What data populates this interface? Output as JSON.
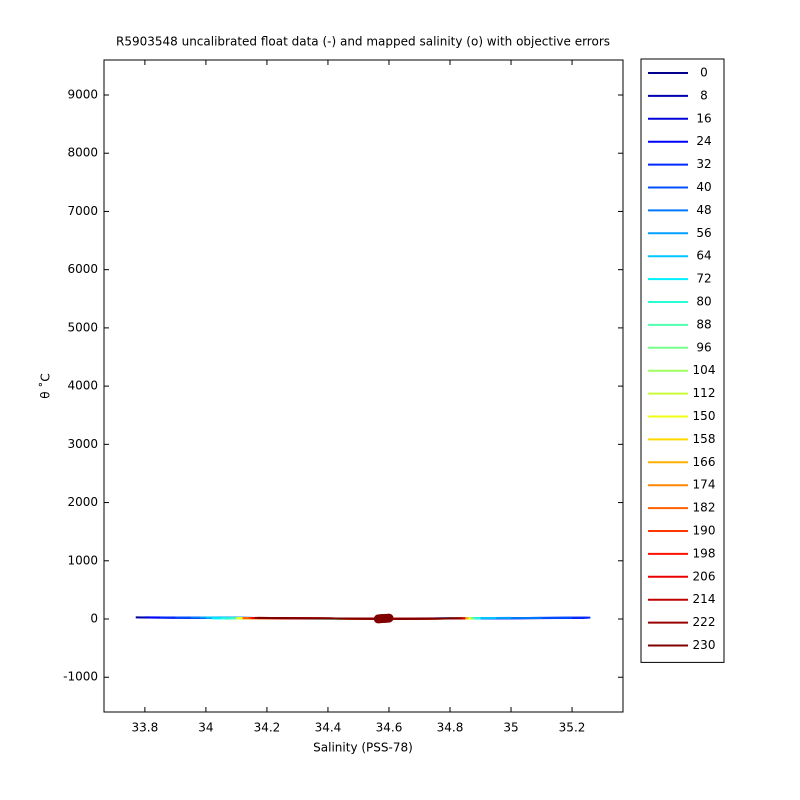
{
  "chart_data": {
    "type": "line",
    "title": "R5903548 uncalibrated float data (-) and mapped salinity (o) with objective errors",
    "x_label": "Salinity (PSS-78)",
    "y_label": "θ ˚C",
    "xlim": [
      33.666,
      35.367
    ],
    "ylim": [
      -1597,
      9601
    ],
    "xticks": [
      33.8,
      34,
      34.2,
      34.4,
      34.6,
      34.8,
      35,
      35.2
    ],
    "yticks": [
      -1000,
      0,
      1000,
      2000,
      3000,
      4000,
      5000,
      6000,
      7000,
      8000,
      9000
    ],
    "series": [
      {
        "name": "0",
        "color": "#00008f",
        "x": [
          33.77,
          33.9,
          34.5,
          35.2
        ],
        "values": [
          28,
          22,
          6,
          18
        ]
      },
      {
        "name": "8",
        "color": "#0000b0",
        "x": [
          33.78,
          34.0,
          34.55,
          35.22
        ],
        "values": [
          27,
          21,
          5,
          19
        ]
      },
      {
        "name": "16",
        "color": "#0000d8",
        "x": [
          33.8,
          34.1,
          34.56,
          35.24
        ],
        "values": [
          28,
          20,
          5,
          20
        ]
      },
      {
        "name": "24",
        "color": "#0000ff",
        "x": [
          33.82,
          34.1,
          34.57,
          35.25
        ],
        "values": [
          27,
          19,
          4,
          22
        ]
      },
      {
        "name": "32",
        "color": "#0028ff",
        "x": [
          33.85,
          34.15,
          34.58,
          35.26
        ],
        "values": [
          26,
          18,
          4,
          23
        ]
      },
      {
        "name": "40",
        "color": "#0050ff",
        "x": [
          33.9,
          34.2,
          34.58,
          35.2
        ],
        "values": [
          26,
          17,
          3,
          21
        ]
      },
      {
        "name": "48",
        "color": "#0078ff",
        "x": [
          33.95,
          34.2,
          34.59,
          35.1
        ],
        "values": [
          25,
          16,
          3,
          20
        ]
      },
      {
        "name": "56",
        "color": "#00a0ff",
        "x": [
          33.98,
          34.25,
          34.59,
          35.0
        ],
        "values": [
          25,
          15,
          3,
          19
        ]
      },
      {
        "name": "64",
        "color": "#00c8ff",
        "x": [
          34.0,
          34.25,
          34.6,
          34.95
        ],
        "values": [
          24,
          14,
          3,
          18
        ]
      },
      {
        "name": "72",
        "color": "#00f0ff",
        "x": [
          34.02,
          34.3,
          34.6,
          34.9
        ],
        "values": [
          12,
          10,
          3,
          14
        ]
      },
      {
        "name": "80",
        "color": "#28ffd8",
        "x": [
          34.05,
          34.3,
          34.6,
          34.9
        ],
        "values": [
          11,
          9,
          3,
          13
        ]
      },
      {
        "name": "88",
        "color": "#50ffb0",
        "x": [
          34.08,
          34.3,
          34.6,
          34.88
        ],
        "values": [
          11,
          9,
          3,
          13
        ]
      },
      {
        "name": "96",
        "color": "#78ff88",
        "x": [
          34.1,
          34.35,
          34.6,
          34.88
        ],
        "values": [
          12,
          9,
          3,
          12
        ]
      },
      {
        "name": "104",
        "color": "#a0ff60",
        "x": [
          34.1,
          34.35,
          34.6,
          34.87
        ],
        "values": [
          13,
          9,
          3,
          12
        ]
      },
      {
        "name": "112",
        "color": "#c8ff38",
        "x": [
          34.1,
          34.35,
          34.6,
          34.87
        ],
        "values": [
          14,
          10,
          3,
          12
        ]
      },
      {
        "name": "150",
        "color": "#f0ff10",
        "x": [
          34.1,
          34.35,
          34.6,
          34.87
        ],
        "values": [
          14,
          10,
          3,
          12
        ]
      },
      {
        "name": "158",
        "color": "#ffd800",
        "x": [
          34.12,
          34.35,
          34.6,
          34.86
        ],
        "values": [
          15,
          10,
          3,
          12
        ]
      },
      {
        "name": "166",
        "color": "#ffb000",
        "x": [
          34.12,
          34.35,
          34.6,
          34.86
        ],
        "values": [
          15,
          10,
          3,
          12
        ]
      },
      {
        "name": "174",
        "color": "#ff8800",
        "x": [
          34.12,
          34.35,
          34.6,
          34.85
        ],
        "values": [
          16,
          10,
          3,
          12
        ]
      },
      {
        "name": "182",
        "color": "#ff6000",
        "x": [
          34.12,
          34.35,
          34.6,
          34.85
        ],
        "values": [
          16,
          10,
          3,
          12
        ]
      },
      {
        "name": "190",
        "color": "#ff3800",
        "x": [
          34.14,
          34.35,
          34.6,
          34.85
        ],
        "values": [
          17,
          10,
          3,
          12
        ]
      },
      {
        "name": "198",
        "color": "#ff1000",
        "x": [
          34.15,
          34.35,
          34.6,
          34.85
        ],
        "values": [
          18,
          10,
          3,
          12
        ]
      },
      {
        "name": "206",
        "color": "#e80000",
        "x": [
          34.15,
          34.35,
          34.6,
          34.85
        ],
        "values": [
          18,
          10,
          3,
          12
        ]
      },
      {
        "name": "214",
        "color": "#c00000",
        "x": [
          34.16,
          34.35,
          34.6,
          34.84
        ],
        "values": [
          18,
          10,
          3,
          12
        ]
      },
      {
        "name": "222",
        "color": "#980000",
        "x": [
          34.16,
          34.35,
          34.6,
          34.84
        ],
        "values": [
          19,
          10,
          3,
          12
        ]
      },
      {
        "name": "230",
        "color": "#800000",
        "x": [
          34.17,
          34.35,
          34.6,
          34.83
        ],
        "values": [
          19,
          10,
          3,
          12
        ]
      }
    ],
    "mapped": {
      "color": "#800000",
      "x": [
        34.565,
        34.57,
        34.575,
        34.58,
        34.585,
        34.59,
        34.595,
        34.6
      ],
      "values": [
        2,
        4,
        6,
        8,
        10,
        12,
        14,
        16
      ]
    }
  }
}
